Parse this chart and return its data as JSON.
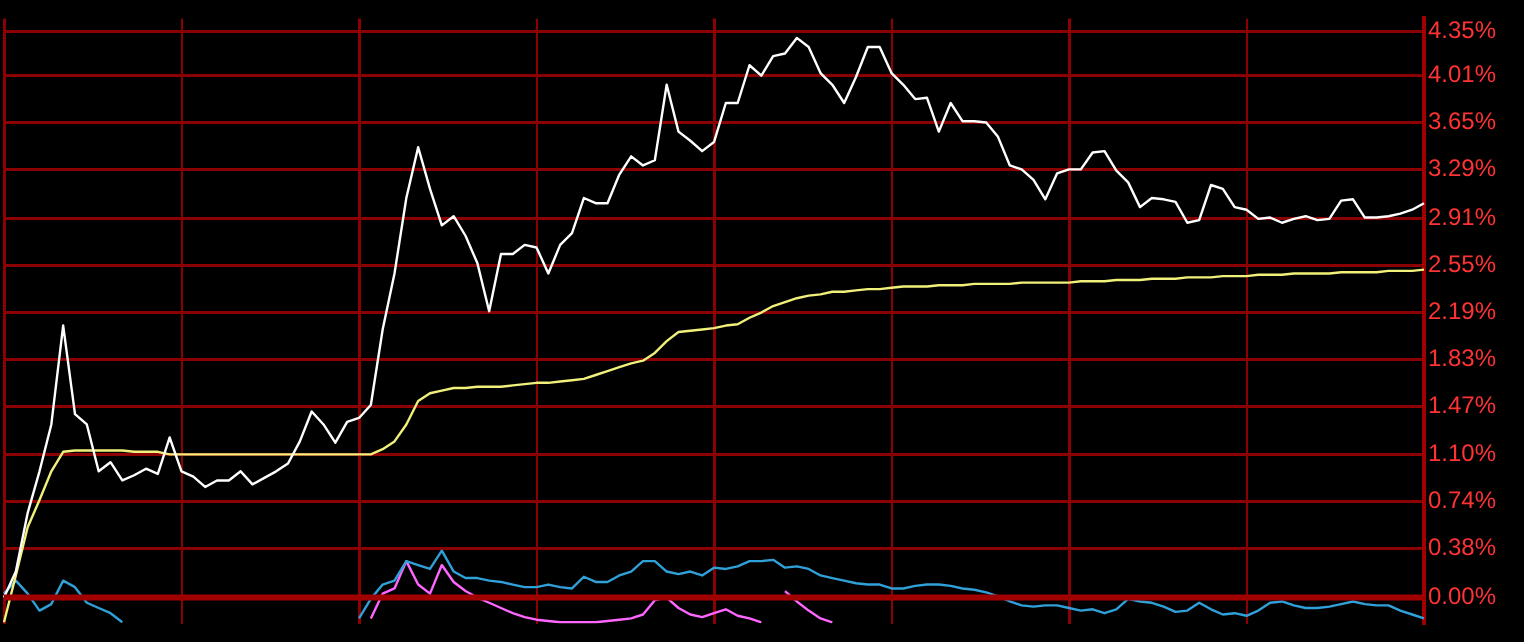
{
  "chart_data": {
    "type": "line",
    "grid": true,
    "legend": false,
    "tick_labels": "y",
    "marker": "none",
    "line_style": "solid",
    "categories": [
      null,
      null,
      null,
      null,
      null,
      null,
      null,
      null,
      null,
      null,
      null,
      null,
      null,
      null,
      null,
      null,
      null,
      null,
      null,
      null,
      null,
      null,
      null,
      null,
      null,
      null,
      null,
      null,
      null,
      null,
      null,
      null,
      null,
      null,
      null,
      null,
      null,
      null,
      null,
      null,
      null,
      null,
      null,
      null,
      null,
      null,
      null,
      null,
      null,
      null,
      null,
      null,
      null,
      null,
      null,
      null,
      null,
      null,
      null,
      null,
      null,
      null,
      null,
      null,
      null,
      null,
      null,
      null,
      null,
      null,
      null,
      null,
      null,
      null,
      null,
      null,
      null,
      null,
      null,
      null,
      null,
      null,
      null,
      null,
      null,
      null,
      null,
      null,
      null,
      null,
      null,
      null,
      null,
      null,
      null,
      null,
      null,
      null,
      null,
      null,
      null,
      null,
      null,
      null,
      null,
      null,
      null,
      null,
      null,
      null,
      null,
      null,
      null,
      null,
      null,
      null,
      null,
      null,
      null,
      null,
      null
    ],
    "ylim": [
      -0.2,
      4.45
    ],
    "yticks": [
      {
        "value": 0,
        "label": "0.00%"
      },
      {
        "value": 0.38,
        "label": "0.38%"
      },
      {
        "value": 0.74,
        "label": "0.74%"
      },
      {
        "value": 1.1,
        "label": "1.10%"
      },
      {
        "value": 1.47,
        "label": "1.47%"
      },
      {
        "value": 1.83,
        "label": "1.83%"
      },
      {
        "value": 2.19,
        "label": "2.19%"
      },
      {
        "value": 2.55,
        "label": "2.55%"
      },
      {
        "value": 2.91,
        "label": "2.91%"
      },
      {
        "value": 3.29,
        "label": "3.29%"
      },
      {
        "value": 3.65,
        "label": "3.65%"
      },
      {
        "value": 4.01,
        "label": "4.01%"
      },
      {
        "value": 4.35,
        "label": "4.35%"
      }
    ],
    "ref_lines": [
      {
        "axis": "y",
        "value": 0,
        "color": "#a00000"
      }
    ],
    "series": [
      {
        "color": "#ffffff",
        "values": [
          0.0,
          0.2,
          0.65,
          0.97,
          1.33,
          2.09,
          1.41,
          1.33,
          0.97,
          1.04,
          0.9,
          0.94,
          0.99,
          0.95,
          1.23,
          0.97,
          0.93,
          0.85,
          0.9,
          0.9,
          0.97,
          0.87,
          0.92,
          0.97,
          1.03,
          1.2,
          1.43,
          1.33,
          1.19,
          1.35,
          1.38,
          1.48,
          2.06,
          2.49,
          3.07,
          3.46,
          3.14,
          2.86,
          2.93,
          2.78,
          2.57,
          2.2,
          2.64,
          2.64,
          2.71,
          2.69,
          2.49,
          2.71,
          2.8,
          3.07,
          3.03,
          3.03,
          3.25,
          3.39,
          3.32,
          3.36,
          3.94,
          3.58,
          3.51,
          3.43,
          3.5,
          3.8,
          3.8,
          4.09,
          4.01,
          4.16,
          4.18,
          4.3,
          4.23,
          4.03,
          3.94,
          3.8,
          4.0,
          4.23,
          4.23,
          4.03,
          3.94,
          3.83,
          3.84,
          3.58,
          3.8,
          3.66,
          3.66,
          3.65,
          3.54,
          3.32,
          3.29,
          3.21,
          3.06,
          3.26,
          3.29,
          3.29,
          3.42,
          3.43,
          3.28,
          3.19,
          3.0,
          3.07,
          3.06,
          3.04,
          2.88,
          2.9,
          3.17,
          3.14,
          3.0,
          2.98,
          2.91,
          2.92,
          2.88,
          2.91,
          2.93,
          2.9,
          2.91,
          3.05,
          3.06,
          2.92,
          2.92,
          2.93,
          2.95,
          2.98,
          3.03
        ]
      },
      {
        "color": "#f0f07a",
        "values": [
          -0.19,
          0.17,
          0.54,
          0.75,
          0.97,
          1.12,
          1.13,
          1.13,
          1.13,
          1.13,
          1.13,
          1.12,
          1.12,
          1.12,
          1.1,
          1.1,
          1.1,
          1.1,
          1.1,
          1.1,
          1.1,
          1.1,
          1.1,
          1.1,
          1.1,
          1.1,
          1.1,
          1.1,
          1.1,
          1.1,
          1.1,
          1.1,
          1.14,
          1.2,
          1.33,
          1.51,
          1.57,
          1.59,
          1.61,
          1.61,
          1.62,
          1.62,
          1.62,
          1.63,
          1.64,
          1.65,
          1.65,
          1.66,
          1.67,
          1.68,
          1.71,
          1.74,
          1.77,
          1.8,
          1.82,
          1.88,
          1.97,
          2.04,
          2.05,
          2.06,
          2.07,
          2.09,
          2.1,
          2.15,
          2.19,
          2.24,
          2.27,
          2.3,
          2.32,
          2.33,
          2.35,
          2.35,
          2.36,
          2.37,
          2.37,
          2.38,
          2.39,
          2.39,
          2.39,
          2.4,
          2.4,
          2.4,
          2.41,
          2.41,
          2.41,
          2.41,
          2.42,
          2.42,
          2.42,
          2.42,
          2.42,
          2.43,
          2.43,
          2.43,
          2.44,
          2.44,
          2.44,
          2.45,
          2.45,
          2.45,
          2.46,
          2.46,
          2.46,
          2.47,
          2.47,
          2.47,
          2.48,
          2.48,
          2.48,
          2.49,
          2.49,
          2.49,
          2.49,
          2.5,
          2.5,
          2.5,
          2.5,
          2.51,
          2.51,
          2.51,
          2.52
        ]
      },
      {
        "color": "#30a0d8",
        "values": [
          0.03,
          0.13,
          0.03,
          -0.1,
          -0.05,
          0.13,
          0.08,
          -0.04,
          -0.08,
          -0.12,
          -0.19,
          null,
          null,
          null,
          null,
          null,
          null,
          null,
          null,
          null,
          null,
          null,
          null,
          null,
          null,
          null,
          null,
          null,
          null,
          null,
          -0.16,
          -0.01,
          0.1,
          0.13,
          0.28,
          0.25,
          0.22,
          0.36,
          0.2,
          0.15,
          0.15,
          0.13,
          0.12,
          0.1,
          0.08,
          0.08,
          0.1,
          0.08,
          0.07,
          0.16,
          0.12,
          0.12,
          0.17,
          0.2,
          0.28,
          0.28,
          0.2,
          0.18,
          0.2,
          0.17,
          0.23,
          0.22,
          0.24,
          0.28,
          0.28,
          0.29,
          0.23,
          0.24,
          0.22,
          0.17,
          0.15,
          0.13,
          0.11,
          0.1,
          0.1,
          0.07,
          0.07,
          0.09,
          0.1,
          0.1,
          0.09,
          0.07,
          0.06,
          0.04,
          0.01,
          -0.03,
          -0.06,
          -0.07,
          -0.06,
          -0.06,
          -0.08,
          -0.1,
          -0.09,
          -0.12,
          -0.09,
          -0.01,
          -0.03,
          -0.04,
          -0.07,
          -0.11,
          -0.1,
          -0.04,
          -0.09,
          -0.13,
          -0.12,
          -0.14,
          -0.1,
          -0.04,
          -0.03,
          -0.06,
          -0.08,
          -0.08,
          -0.07,
          -0.05,
          -0.03,
          -0.05,
          -0.06,
          -0.06,
          -0.1,
          -0.13,
          -0.16
        ]
      },
      {
        "color": "#ff66ff",
        "values": [
          null,
          null,
          null,
          null,
          null,
          null,
          null,
          null,
          null,
          null,
          null,
          null,
          null,
          null,
          null,
          null,
          null,
          null,
          null,
          null,
          null,
          null,
          null,
          null,
          null,
          null,
          null,
          null,
          null,
          null,
          null,
          -0.16,
          0.03,
          0.07,
          0.28,
          0.1,
          0.03,
          0.25,
          0.12,
          0.05,
          0.0,
          -0.04,
          -0.08,
          -0.12,
          -0.15,
          -0.17,
          -0.18,
          -0.19,
          -0.19,
          -0.19,
          -0.19,
          -0.18,
          -0.17,
          -0.16,
          -0.13,
          -0.02,
          0.0,
          -0.08,
          -0.13,
          -0.15,
          -0.12,
          -0.09,
          -0.14,
          -0.16,
          -0.19,
          null,
          0.05,
          -0.03,
          -0.1,
          -0.16,
          -0.19,
          null,
          null,
          null,
          null,
          null,
          null,
          null,
          null,
          null,
          null,
          null,
          null,
          null,
          null,
          null,
          null,
          null,
          null,
          null,
          null,
          null,
          null,
          null,
          null,
          null,
          null,
          null,
          null,
          null,
          null,
          null,
          null,
          null,
          null,
          null,
          null,
          null,
          null,
          null,
          null,
          null,
          null,
          null,
          null,
          null,
          null,
          null,
          null,
          null,
          null
        ]
      }
    ]
  }
}
